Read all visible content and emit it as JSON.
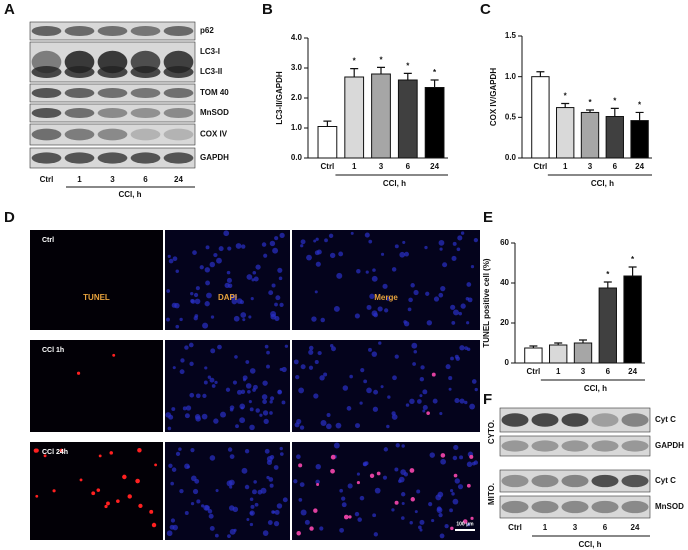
{
  "panel_letters": [
    "A",
    "B",
    "C",
    "D",
    "E",
    "F"
  ],
  "blot_a": {
    "rows": [
      "p62",
      "LC3-I",
      "LC3-II",
      "TOM 40",
      "MnSOD",
      "COX IV",
      "GAPDH"
    ],
    "lanes": [
      "Ctrl",
      "1",
      "3",
      "6",
      "24"
    ],
    "xlabel": "CCl, h"
  },
  "chart_data": [
    {
      "type": "bar",
      "ylabel": "LC3-II/GAPDH",
      "xlabel": "CCl, h",
      "categories": [
        "Ctrl",
        "1",
        "3",
        "6",
        "24"
      ],
      "values": [
        1.05,
        2.7,
        2.8,
        2.6,
        2.35
      ],
      "errors": [
        0.18,
        0.28,
        0.22,
        0.22,
        0.25
      ],
      "colors": [
        "#ffffff",
        "#d9d9d9",
        "#a6a6a6",
        "#404040",
        "#000000"
      ],
      "significance": [
        null,
        "*",
        "*",
        "*",
        "*"
      ],
      "ylim": [
        0,
        4
      ],
      "yticks": [
        {
          "value": 0,
          "label": "0.0"
        },
        {
          "value": 1,
          "label": "1.0"
        },
        {
          "value": 2,
          "label": "2.0"
        },
        {
          "value": 3,
          "label": "3.0"
        },
        {
          "value": 4,
          "label": "4.0"
        }
      ]
    },
    {
      "type": "bar",
      "ylabel": "COX IV/GAPDH",
      "xlabel": "CCl, h",
      "categories": [
        "Ctrl",
        "1",
        "3",
        "6",
        "24"
      ],
      "values": [
        1.0,
        0.62,
        0.56,
        0.51,
        0.46
      ],
      "errors": [
        0.06,
        0.05,
        0.03,
        0.1,
        0.1
      ],
      "colors": [
        "#ffffff",
        "#d9d9d9",
        "#a6a6a6",
        "#404040",
        "#000000"
      ],
      "significance": [
        null,
        "*",
        "*",
        "*",
        "*"
      ],
      "ylim": [
        0,
        1.5
      ],
      "yticks": [
        {
          "value": 0,
          "label": "0.0"
        },
        0.5,
        {
          "value": 1,
          "label": "1.0"
        },
        1.5
      ]
    },
    {
      "type": "bar",
      "ylabel": "TUNEL positive cell (%)",
      "xlabel": "CCl, h",
      "categories": [
        "Ctrl",
        "1",
        "3",
        "6",
        "24"
      ],
      "values": [
        7.5,
        9,
        10,
        37.5,
        43.5
      ],
      "errors": [
        1,
        1,
        1.5,
        3,
        4.5
      ],
      "colors": [
        "#ffffff",
        "#d9d9d9",
        "#a6a6a6",
        "#404040",
        "#000000"
      ],
      "significance": [
        null,
        null,
        null,
        "*",
        "*"
      ],
      "ylim": [
        0,
        60
      ],
      "yticks": [
        0,
        20,
        40,
        60
      ]
    }
  ],
  "microscopy": {
    "rows": [
      "Ctrl",
      "CCl 1h",
      "CCl 24h"
    ],
    "channels": [
      "TUNEL",
      "DAPI",
      "Merge"
    ],
    "scale_bar": "100 μm"
  },
  "blot_f": {
    "groups": [
      {
        "name": "CYTO.",
        "rows": [
          "Cyt C",
          "GAPDH"
        ]
      },
      {
        "name": "MITO.",
        "rows": [
          "Cyt C",
          "MnSOD"
        ]
      }
    ],
    "lanes": [
      "Ctrl",
      "1",
      "3",
      "6",
      "24"
    ],
    "xlabel": "CCl, h"
  }
}
